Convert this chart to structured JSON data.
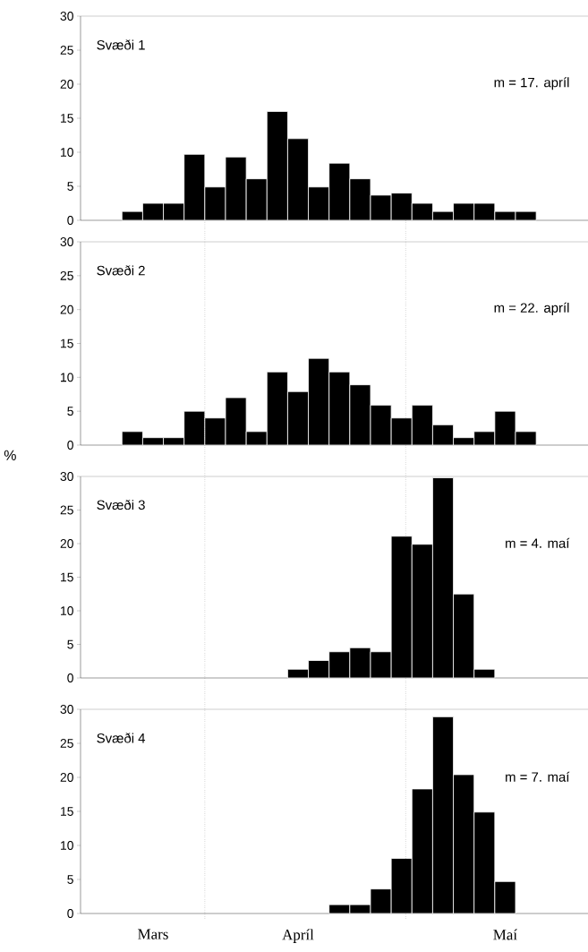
{
  "chart_data": [
    {
      "type": "bar",
      "title": "Svæði 1",
      "annotations": [
        "m = 17. apríl"
      ],
      "color": "#000000",
      "categories": [
        null,
        null,
        null,
        null,
        null,
        null,
        null,
        null,
        null,
        null,
        null,
        null,
        null,
        null,
        null,
        null,
        null,
        null,
        null,
        null,
        null,
        null,
        null,
        null
      ],
      "values": [
        null,
        null,
        1.3,
        2.5,
        2.5,
        9.7,
        4.9,
        9.3,
        6.1,
        16,
        12,
        4.9,
        8.4,
        6.1,
        3.7,
        4,
        2.5,
        1.3,
        2.5,
        2.5,
        1.3,
        1.3,
        null,
        null
      ],
      "ylim": [
        0,
        30
      ],
      "yticks": [
        0,
        5,
        10,
        15,
        20,
        25,
        30
      ],
      "tick_labels": "y"
    },
    {
      "type": "bar",
      "title": "Svæði 2",
      "ylabel": "%",
      "annotations": [
        "m = 22. apríl"
      ],
      "color": "#000000",
      "categories": [
        null,
        null,
        null,
        null,
        null,
        null,
        null,
        null,
        null,
        null,
        null,
        null,
        null,
        null,
        null,
        null,
        null,
        null,
        null,
        null,
        null,
        null,
        null,
        null
      ],
      "values": [
        null,
        null,
        2,
        1.1,
        1.1,
        5,
        4,
        7,
        2,
        10.8,
        7.9,
        12.8,
        10.8,
        8.9,
        5.9,
        4,
        5.9,
        3,
        1.1,
        2,
        5,
        2,
        null,
        null
      ],
      "ylim": [
        0,
        30
      ],
      "yticks": [
        0,
        5,
        10,
        15,
        20,
        25,
        30
      ],
      "tick_labels": "y"
    },
    {
      "type": "bar",
      "title": "Svæði 3",
      "annotations": [
        "m = 4. maí"
      ],
      "color": "#000000",
      "categories": [
        null,
        null,
        null,
        null,
        null,
        null,
        null,
        null,
        null,
        null,
        null,
        null,
        null,
        null,
        null,
        null,
        null,
        null,
        null,
        null,
        null,
        null,
        null,
        null
      ],
      "values": [
        null,
        null,
        null,
        null,
        null,
        null,
        null,
        null,
        null,
        null,
        1.3,
        2.6,
        3.9,
        4.5,
        3.9,
        21.1,
        19.9,
        29.8,
        12.5,
        1.3,
        null,
        null,
        null,
        null
      ],
      "ylim": [
        0,
        30
      ],
      "yticks": [
        0,
        5,
        10,
        15,
        20,
        25,
        30
      ],
      "tick_labels": "y"
    },
    {
      "type": "bar",
      "title": "Svæði 4",
      "annotations": [
        "m = 7. maí"
      ],
      "color": "#000000",
      "categories": [
        null,
        null,
        null,
        "Mars",
        null,
        null,
        null,
        null,
        null,
        null,
        "Apríl",
        null,
        null,
        null,
        null,
        null,
        null,
        null,
        null,
        null,
        "Maí",
        null,
        null,
        null
      ],
      "values": [
        null,
        null,
        null,
        null,
        null,
        null,
        null,
        null,
        null,
        null,
        null,
        null,
        1.3,
        1.3,
        3.6,
        8.1,
        18.3,
        28.9,
        20.4,
        14.9,
        4.7,
        null,
        null,
        null
      ],
      "ylim": [
        0,
        30
      ],
      "yticks": [
        0,
        5,
        10,
        15,
        20,
        25,
        30
      ]
    }
  ]
}
